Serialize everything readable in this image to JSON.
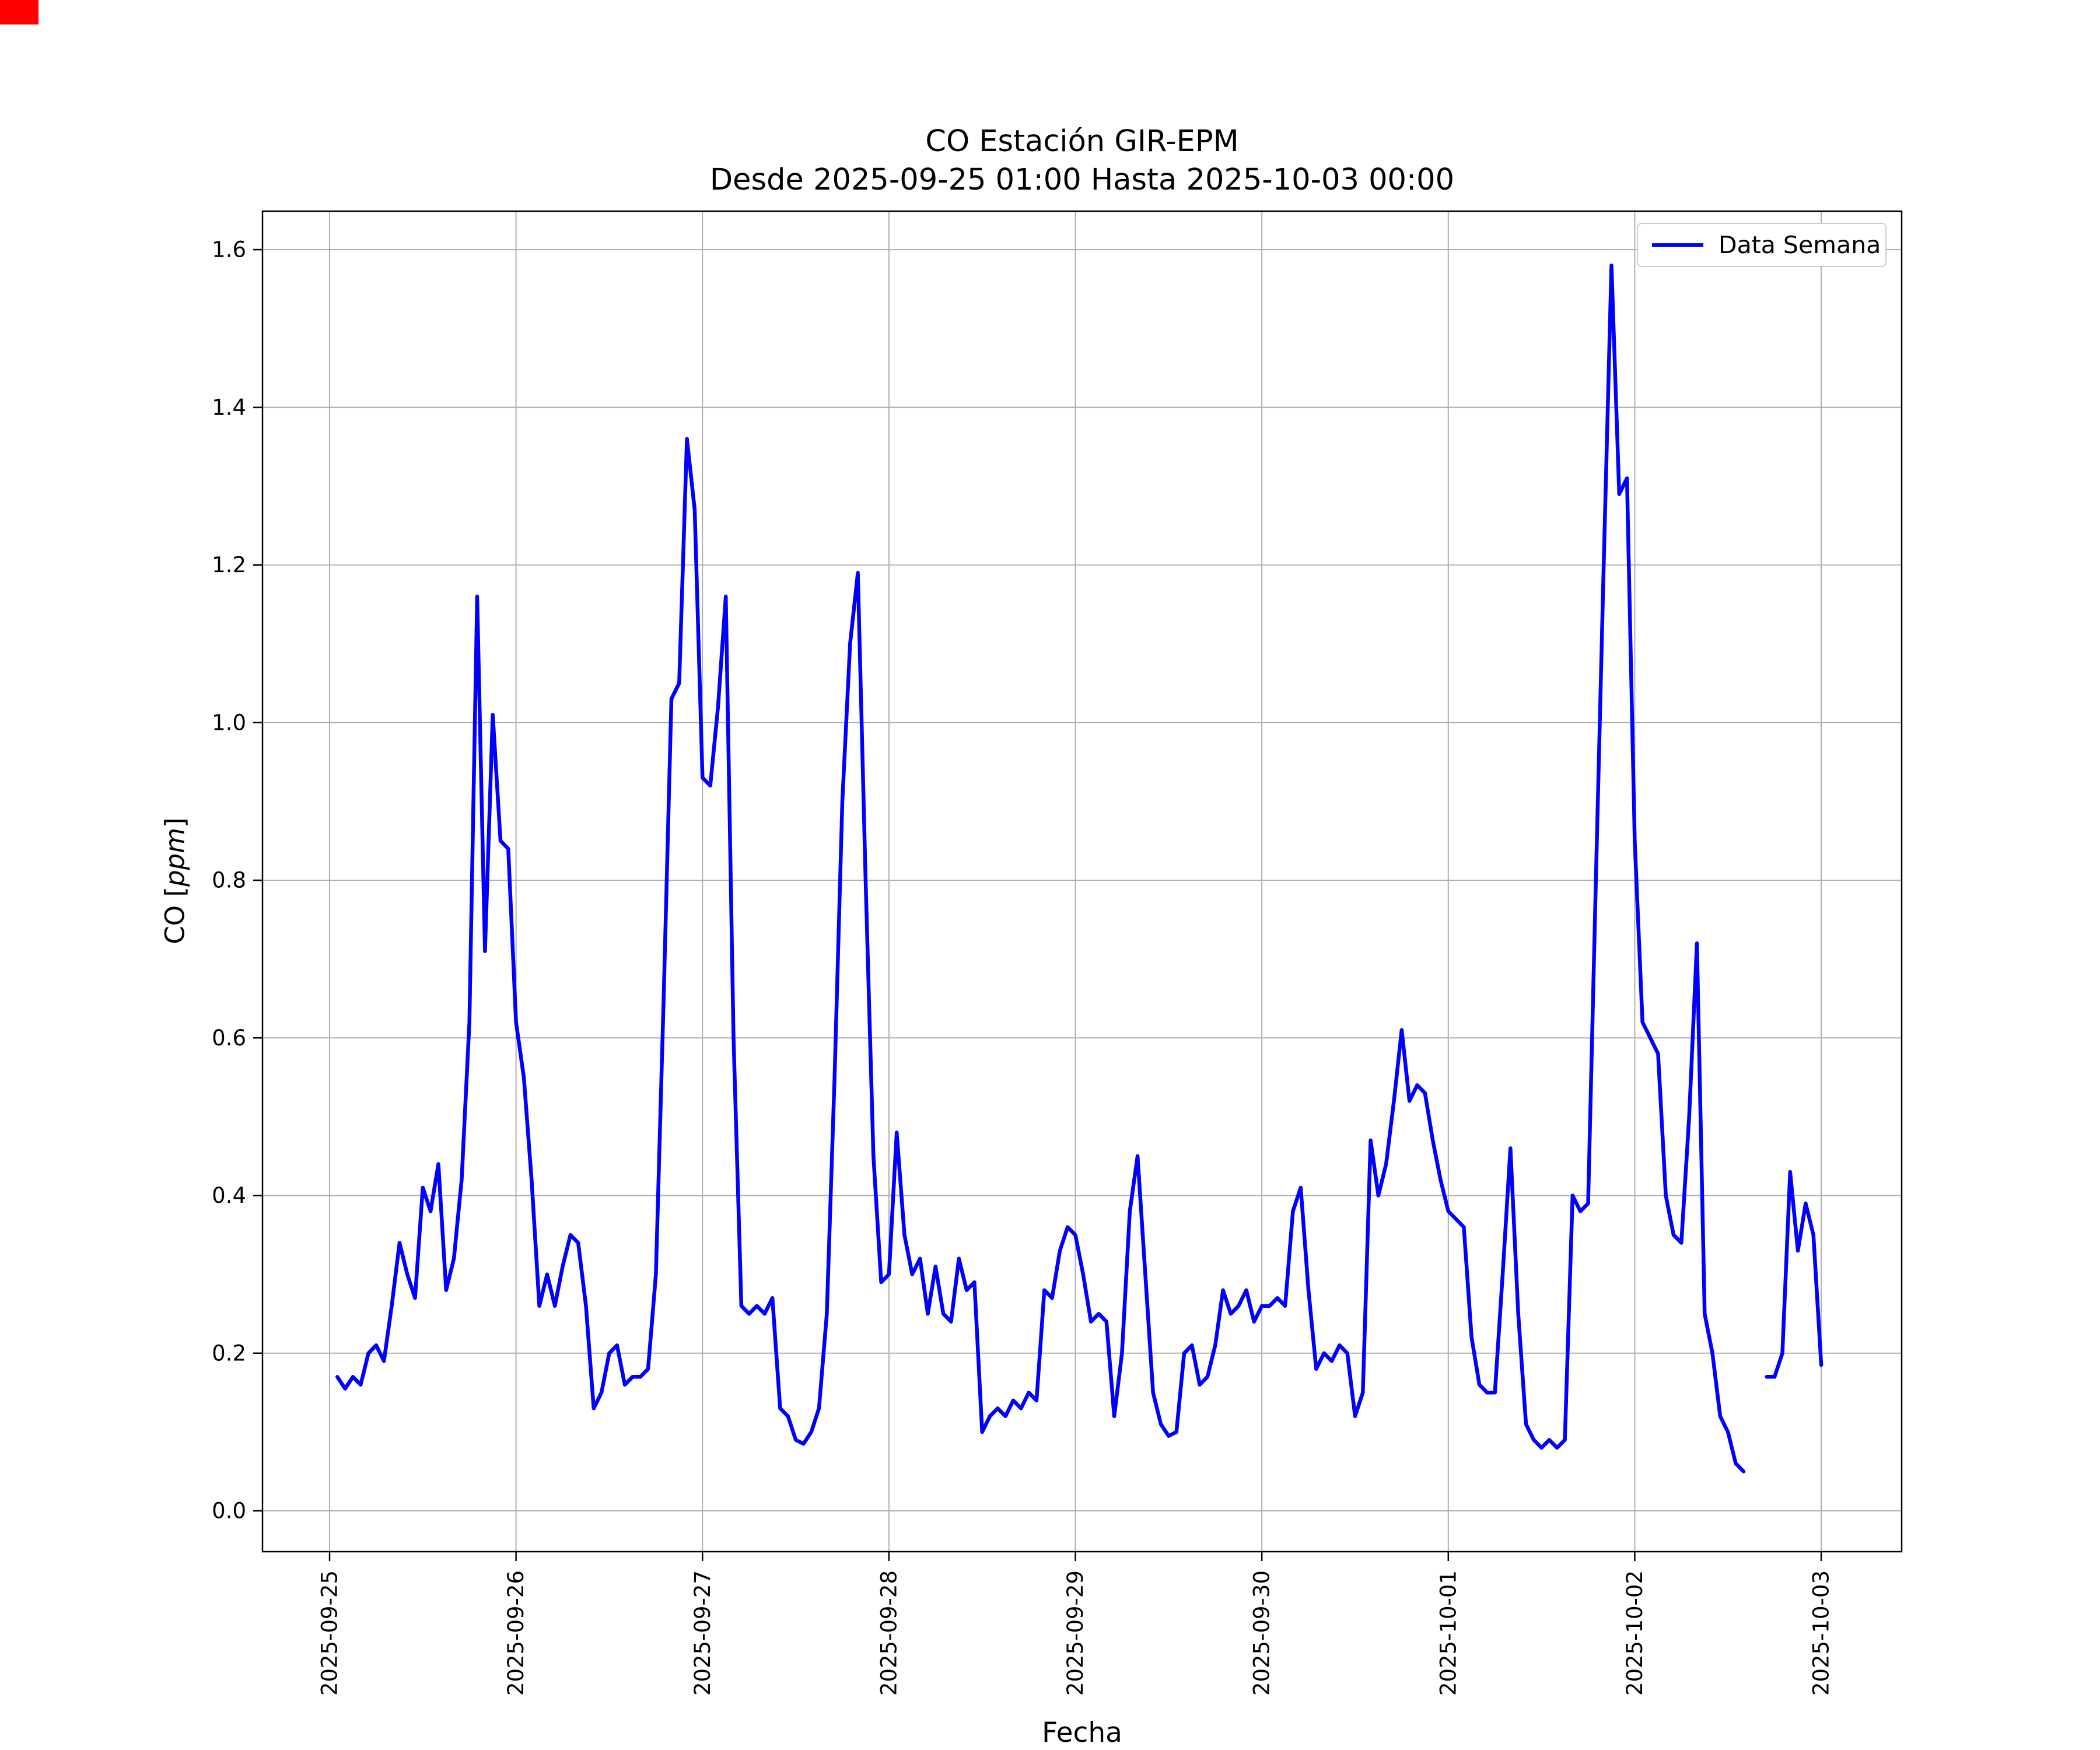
{
  "header": {
    "title_line1": "CO Estación GIR-EPM",
    "title_line2": "Desde 2025-09-25 01:00 Hasta 2025-10-03 00:00"
  },
  "axes": {
    "xlabel": "Fecha",
    "ylabel_prefix": "CO [",
    "ylabel_unit": "ppm",
    "ylabel_suffix": "]"
  },
  "legend": {
    "label": "Data Semana"
  },
  "style": {
    "line_color": "#0000ff",
    "grid_color": "#b0b0b0",
    "axis_color": "#000000",
    "legend_border_color": "#cccccc"
  },
  "chart_data": {
    "type": "line",
    "title": "CO Estación GIR-EPM",
    "subtitle": "Desde 2025-09-25 01:00 Hasta 2025-10-03 00:00",
    "xlabel": "Fecha",
    "ylabel": "CO [ppm]",
    "series_name": "Data Semana",
    "x_start": "2025-09-25 01:00",
    "x_interval_hours": 1,
    "x_ticks": [
      "2025-09-25",
      "2025-09-26",
      "2025-09-27",
      "2025-09-28",
      "2025-09-29",
      "2025-09-30",
      "2025-10-01",
      "2025-10-02",
      "2025-10-03"
    ],
    "y_ticks": [
      "0.0",
      "0.2",
      "0.4",
      "0.6",
      "0.8",
      "1.0",
      "1.2",
      "1.4",
      "1.6"
    ],
    "ylim": [
      -0.05,
      1.65
    ],
    "grid": true,
    "legend_position": "upper right",
    "values": [
      0.17,
      0.155,
      0.17,
      0.16,
      0.2,
      0.21,
      0.19,
      0.26,
      0.34,
      0.3,
      0.27,
      0.41,
      0.38,
      0.44,
      0.28,
      0.32,
      0.42,
      0.62,
      1.16,
      0.71,
      1.01,
      0.85,
      0.84,
      0.62,
      0.55,
      0.42,
      0.26,
      0.3,
      0.26,
      0.31,
      0.35,
      0.34,
      0.26,
      0.13,
      0.15,
      0.2,
      0.21,
      0.16,
      0.17,
      0.17,
      0.18,
      0.3,
      0.65,
      1.03,
      1.05,
      1.36,
      1.27,
      0.93,
      0.92,
      1.02,
      1.16,
      0.6,
      0.26,
      0.25,
      0.26,
      0.25,
      0.27,
      0.13,
      0.12,
      0.09,
      0.085,
      0.1,
      0.13,
      0.25,
      0.55,
      0.9,
      1.1,
      1.19,
      0.8,
      0.45,
      0.29,
      0.3,
      0.48,
      0.35,
      0.3,
      0.32,
      0.25,
      0.31,
      0.25,
      0.24,
      0.32,
      0.28,
      0.29,
      0.1,
      0.12,
      0.13,
      0.12,
      0.14,
      0.13,
      0.15,
      0.14,
      0.28,
      0.27,
      0.33,
      0.36,
      0.35,
      0.3,
      0.24,
      0.25,
      0.24,
      0.12,
      0.2,
      0.38,
      0.45,
      0.3,
      0.15,
      0.11,
      0.095,
      0.1,
      0.2,
      0.21,
      0.16,
      0.17,
      0.21,
      0.28,
      0.25,
      0.26,
      0.28,
      0.24,
      0.26,
      0.26,
      0.27,
      0.26,
      0.38,
      0.41,
      0.28,
      0.18,
      0.2,
      0.19,
      0.21,
      0.2,
      0.12,
      0.15,
      0.47,
      0.4,
      0.44,
      0.52,
      0.61,
      0.52,
      0.54,
      0.53,
      0.47,
      0.42,
      0.38,
      0.37,
      0.36,
      0.22,
      0.16,
      0.15,
      0.15,
      0.3,
      0.46,
      0.25,
      0.11,
      0.09,
      0.08,
      0.09,
      0.08,
      0.09,
      0.4,
      0.38,
      0.39,
      0.8,
      1.2,
      1.58,
      1.29,
      1.31,
      0.85,
      0.62,
      0.6,
      0.58,
      0.4,
      0.35,
      0.34,
      0.5,
      0.72,
      0.25,
      0.2,
      0.12,
      0.1,
      0.06,
      0.05,
      null,
      null,
      0.17,
      0.17,
      0.2,
      0.43,
      0.33,
      0.39,
      0.35,
      0.185
    ]
  }
}
